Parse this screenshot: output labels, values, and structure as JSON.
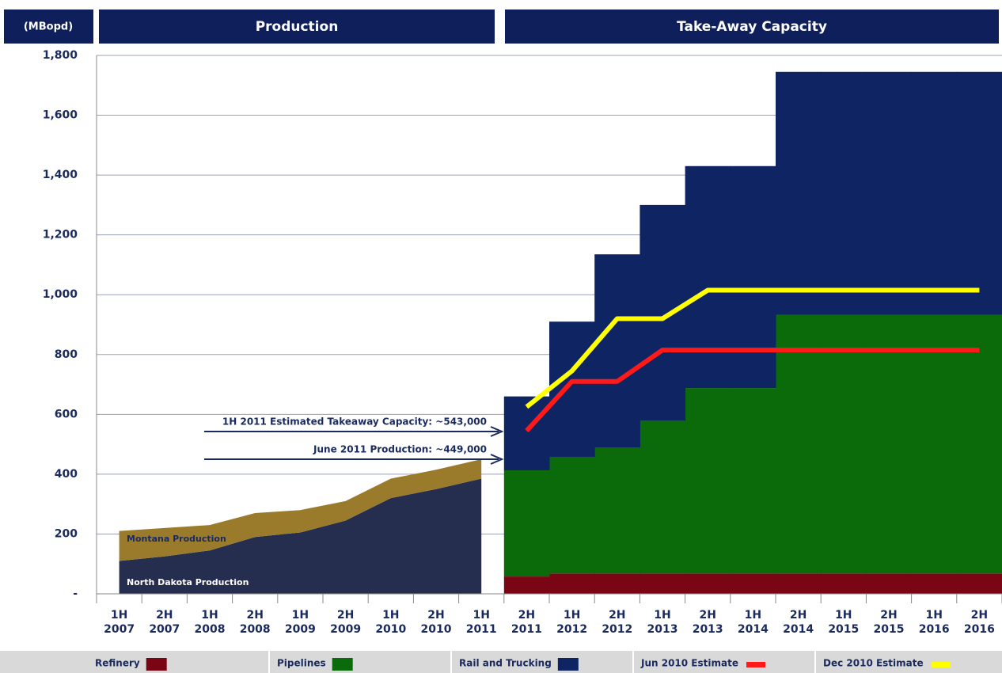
{
  "chart_data": {
    "type": "bar",
    "unit_label": "(MBopd)",
    "headers": [
      "Production",
      "Take-Away Capacity"
    ],
    "categories": [
      "1H 2007",
      "2H 2007",
      "1H 2008",
      "2H 2008",
      "1H 2009",
      "2H 2009",
      "1H 2010",
      "2H 2010",
      "1H 2011",
      "2H 2011",
      "1H 2012",
      "2H 2012",
      "1H 2013",
      "2H 2013",
      "1H 2014",
      "2H 2014",
      "1H 2015",
      "2H 2015",
      "1H 2016",
      "2H 2016"
    ],
    "ylim": [
      0,
      1800
    ],
    "yticks": [
      {
        "value": 0,
        "label": "-"
      },
      200,
      400,
      600,
      800,
      {
        "value": 1000,
        "label": "1,000"
      },
      {
        "value": 1200,
        "label": "1,200"
      },
      {
        "value": 1400,
        "label": "1,400"
      },
      {
        "value": 1600,
        "label": "1,600"
      },
      {
        "value": 1800,
        "label": "1,800"
      }
    ],
    "grid": true,
    "area_series": [
      {
        "name": "North Dakota Production",
        "color": "#262e4f",
        "values": [
          110,
          125,
          145,
          190,
          205,
          245,
          320,
          350,
          385,
          null,
          null,
          null,
          null,
          null,
          null,
          null,
          null,
          null,
          null,
          null
        ]
      },
      {
        "name": "Montana Production",
        "color": "#9a7b2c",
        "values": [
          100,
          95,
          85,
          80,
          75,
          65,
          65,
          65,
          65,
          null,
          null,
          null,
          null,
          null,
          null,
          null,
          null,
          null,
          null,
          null
        ]
      }
    ],
    "series": [
      {
        "name": "Refinery",
        "kind": "bar",
        "color": "#7a0514",
        "values": [
          null,
          null,
          null,
          null,
          null,
          null,
          null,
          null,
          null,
          58,
          68,
          68,
          68,
          68,
          68,
          68,
          68,
          68,
          68,
          68
        ]
      },
      {
        "name": "Pipelines",
        "kind": "bar",
        "color": "#0b6b0b",
        "values": [
          null,
          null,
          null,
          null,
          null,
          null,
          null,
          null,
          null,
          355,
          390,
          420,
          510,
          620,
          620,
          865,
          865,
          865,
          865,
          865
        ]
      },
      {
        "name": "Rail and Trucking",
        "kind": "bar",
        "color": "#0e2463",
        "values": [
          null,
          null,
          null,
          null,
          null,
          null,
          null,
          null,
          null,
          247,
          452,
          647,
          722,
          742,
          742,
          812,
          812,
          812,
          812,
          812
        ]
      },
      {
        "name": "Jun 2010 Estimate",
        "kind": "line",
        "color": "#ff1a1a",
        "values": [
          null,
          null,
          null,
          null,
          null,
          null,
          null,
          null,
          null,
          545,
          710,
          710,
          815,
          815,
          815,
          815,
          815,
          815,
          815,
          815
        ]
      },
      {
        "name": "Dec 2010 Estimate",
        "kind": "line",
        "color": "#ffff00",
        "values": [
          null,
          null,
          null,
          null,
          null,
          null,
          null,
          null,
          null,
          625,
          745,
          920,
          920,
          1015,
          1015,
          1015,
          1015,
          1015,
          1015,
          1015
        ]
      }
    ],
    "annotations": [
      "1H 2011 Estimated Takeaway Capacity: ~543,000",
      "June 2011 Production: ~449,000"
    ]
  }
}
